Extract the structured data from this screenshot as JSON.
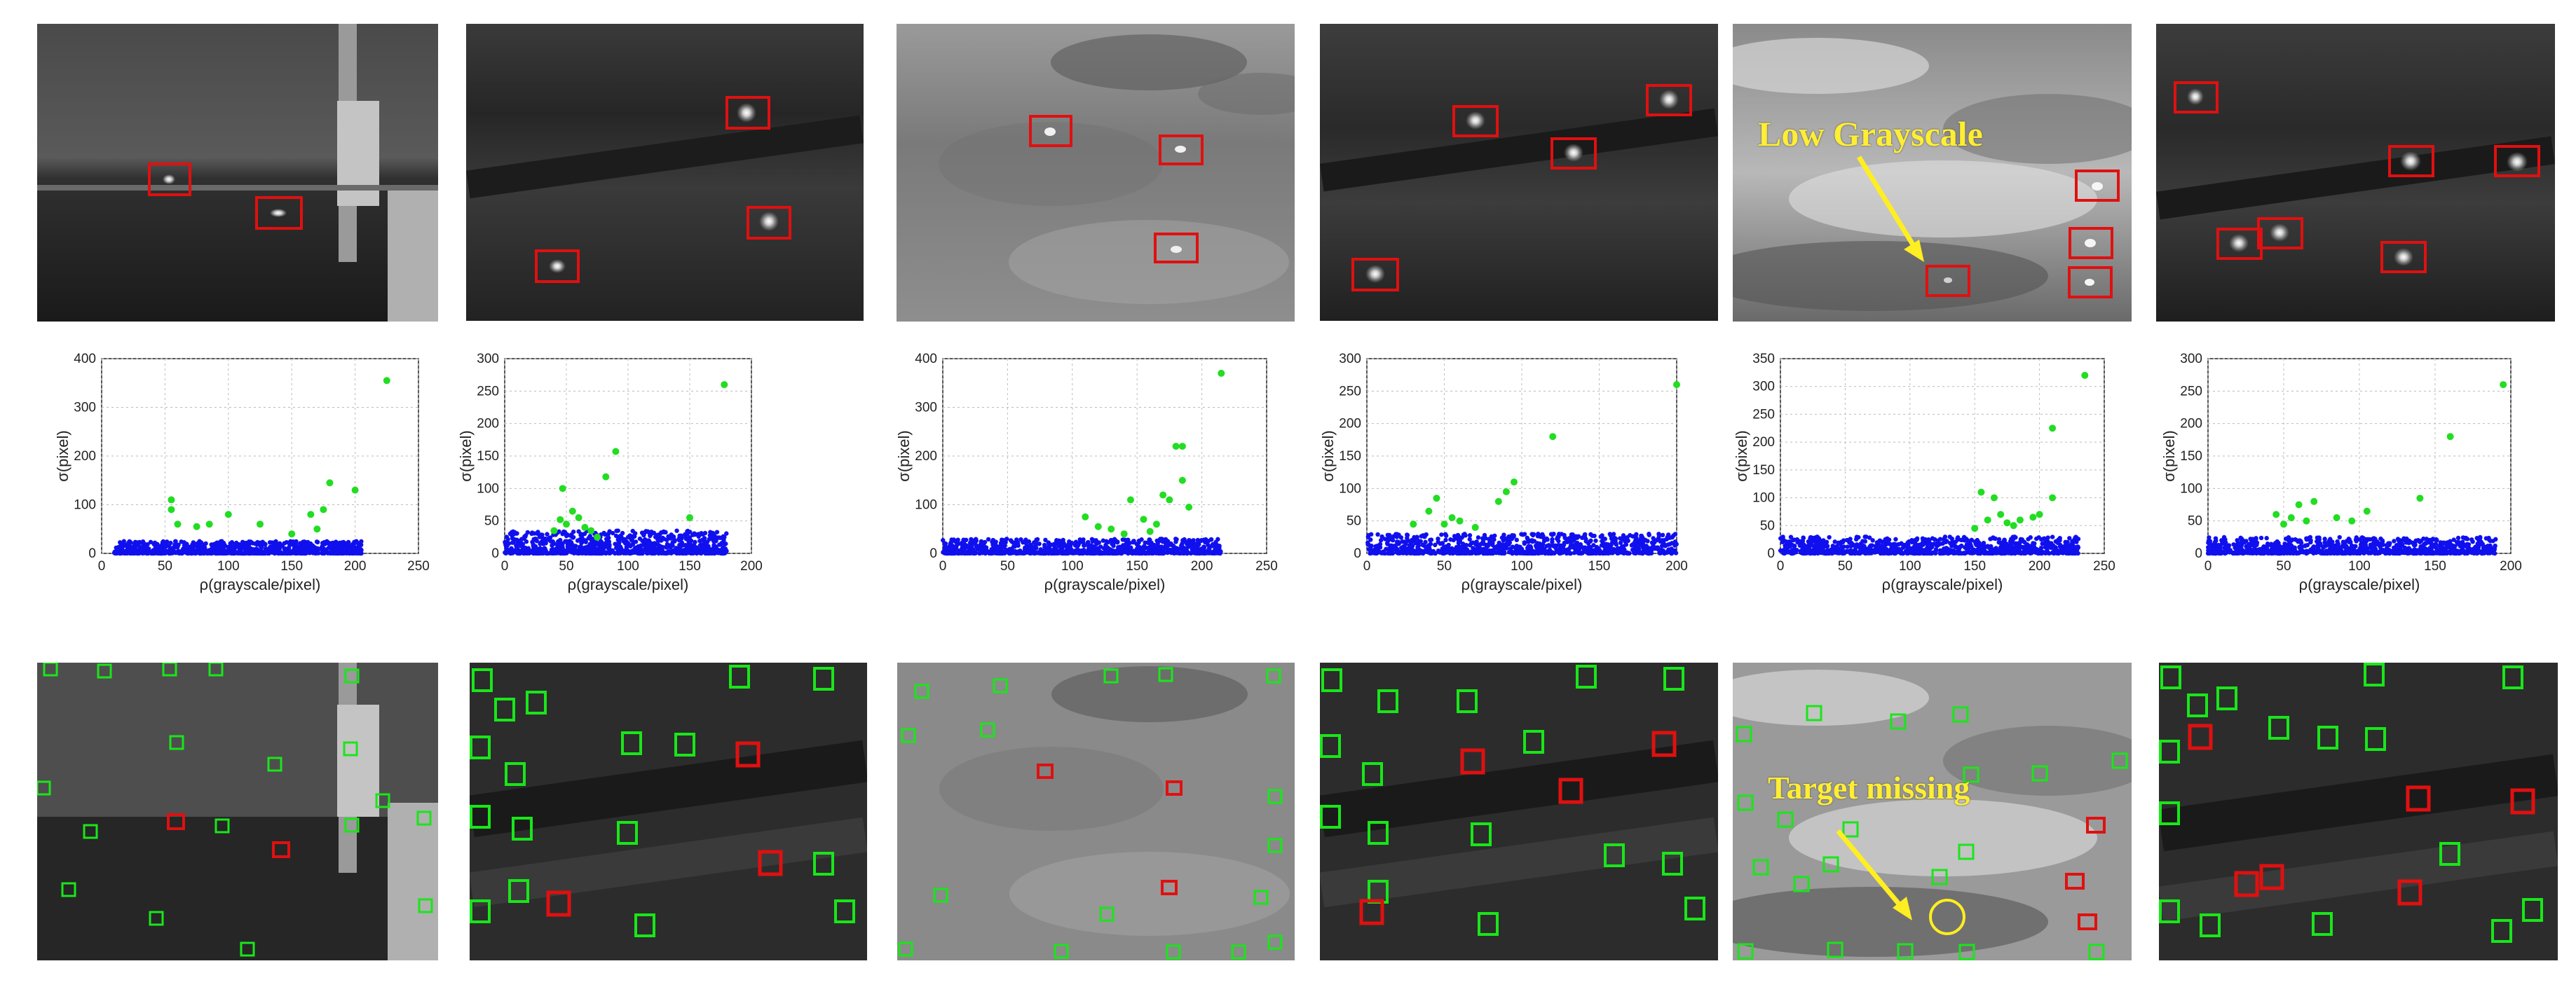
{
  "annotations": {
    "low_grayscale": "Low Grayscale",
    "target_missing": "Target missing"
  },
  "colors": {
    "detection_box": "#e01010",
    "candidate_box": "#19e619",
    "missing_circle": "#ffee22",
    "arrow": "#ffee22",
    "background_points": "#1010ee",
    "target_points": "#22dd22"
  },
  "chart_data": [
    {
      "type": "scatter",
      "xlabel": "ρ(grayscale/pixel)",
      "ylabel": "σ(pixel)",
      "xlim": [
        0,
        250
      ],
      "ylim": [
        0,
        400
      ],
      "xticks": [
        0,
        50,
        100,
        150,
        200,
        250
      ],
      "yticks": [
        0,
        100,
        200,
        300,
        400
      ],
      "grid": true,
      "background_cluster": {
        "x_range": [
          10,
          205
        ],
        "y_range": [
          0,
          25
        ]
      },
      "series": [
        {
          "values": [
            [
              55,
              110
            ],
            [
              55,
              90
            ],
            [
              60,
              60
            ],
            [
              75,
              55
            ],
            [
              85,
              60
            ],
            [
              100,
              80
            ],
            [
              125,
              60
            ],
            [
              180,
              145
            ],
            [
              175,
              90
            ],
            [
              165,
              80
            ],
            [
              200,
              130
            ],
            [
              225,
              355
            ],
            [
              170,
              50
            ],
            [
              150,
              40
            ]
          ]
        }
      ]
    },
    {
      "type": "scatter",
      "xlabel": "ρ(grayscale/pixel)",
      "ylabel": "σ(pixel)",
      "xlim": [
        0,
        200
      ],
      "ylim": [
        0,
        300
      ],
      "xticks": [
        0,
        50,
        100,
        150,
        200
      ],
      "yticks": [
        0,
        50,
        100,
        150,
        200,
        250,
        300
      ],
      "grid": true,
      "background_cluster": {
        "x_range": [
          0,
          180
        ],
        "y_range": [
          0,
          35
        ]
      },
      "series": [
        {
          "values": [
            [
              47,
              100
            ],
            [
              55,
              65
            ],
            [
              60,
              55
            ],
            [
              45,
              52
            ],
            [
              65,
              40
            ],
            [
              70,
              35
            ],
            [
              75,
              25
            ],
            [
              82,
              118
            ],
            [
              90,
              157
            ],
            [
              150,
              55
            ],
            [
              178,
              260
            ],
            [
              40,
              35
            ],
            [
              50,
              45
            ]
          ]
        }
      ]
    },
    {
      "type": "scatter",
      "xlabel": "ρ(grayscale/pixel)",
      "ylabel": "σ(pixel)",
      "xlim": [
        0,
        250
      ],
      "ylim": [
        0,
        400
      ],
      "xticks": [
        0,
        50,
        100,
        150,
        200,
        250
      ],
      "yticks": [
        0,
        100,
        200,
        300,
        400
      ],
      "grid": true,
      "background_cluster": {
        "x_range": [
          0,
          215
        ],
        "y_range": [
          0,
          30
        ]
      },
      "series": [
        {
          "values": [
            [
              110,
              75
            ],
            [
              120,
              55
            ],
            [
              130,
              50
            ],
            [
              145,
              110
            ],
            [
              155,
              70
            ],
            [
              165,
              60
            ],
            [
              170,
              120
            ],
            [
              175,
              110
            ],
            [
              180,
              220
            ],
            [
              185,
              220
            ],
            [
              185,
              150
            ],
            [
              190,
              95
            ],
            [
              215,
              370
            ],
            [
              140,
              40
            ],
            [
              160,
              45
            ]
          ]
        }
      ]
    },
    {
      "type": "scatter",
      "xlabel": "ρ(grayscale/pixel)",
      "ylabel": "σ(pixel)",
      "xlim": [
        0,
        200
      ],
      "ylim": [
        0,
        300
      ],
      "xticks": [
        0,
        50,
        100,
        150,
        200
      ],
      "yticks": [
        0,
        50,
        100,
        150,
        200,
        250,
        300
      ],
      "grid": true,
      "background_cluster": {
        "x_range": [
          0,
          200
        ],
        "y_range": [
          0,
          30
        ]
      },
      "series": [
        {
          "values": [
            [
              40,
              65
            ],
            [
              45,
              85
            ],
            [
              55,
              55
            ],
            [
              60,
              50
            ],
            [
              50,
              45
            ],
            [
              85,
              80
            ],
            [
              90,
              95
            ],
            [
              95,
              110
            ],
            [
              120,
              180
            ],
            [
              200,
              260
            ],
            [
              70,
              40
            ],
            [
              30,
              45
            ]
          ]
        }
      ]
    },
    {
      "type": "scatter",
      "xlabel": "ρ(grayscale/pixel)",
      "ylabel": "σ(pixel)",
      "xlim": [
        0,
        250
      ],
      "ylim": [
        0,
        350
      ],
      "xticks": [
        0,
        50,
        100,
        150,
        200,
        250
      ],
      "yticks": [
        0,
        50,
        100,
        150,
        200,
        250,
        300,
        350
      ],
      "grid": true,
      "background_cluster": {
        "x_range": [
          0,
          230
        ],
        "y_range": [
          0,
          30
        ]
      },
      "series": [
        {
          "values": [
            [
              155,
              110
            ],
            [
              165,
              100
            ],
            [
              170,
              70
            ],
            [
              160,
              60
            ],
            [
              175,
              55
            ],
            [
              185,
              60
            ],
            [
              195,
              65
            ],
            [
              200,
              70
            ],
            [
              210,
              100
            ],
            [
              210,
              225
            ],
            [
              235,
              320
            ],
            [
              180,
              50
            ],
            [
              150,
              45
            ]
          ]
        }
      ]
    },
    {
      "type": "scatter",
      "xlabel": "ρ(grayscale/pixel)",
      "ylabel": "σ(pixel)",
      "xlim": [
        0,
        200
      ],
      "ylim": [
        0,
        300
      ],
      "xticks": [
        0,
        50,
        100,
        150,
        200
      ],
      "yticks": [
        0,
        50,
        100,
        150,
        200,
        250,
        300
      ],
      "grid": true,
      "background_cluster": {
        "x_range": [
          0,
          190
        ],
        "y_range": [
          0,
          25
        ]
      },
      "series": [
        {
          "values": [
            [
              45,
              60
            ],
            [
              55,
              55
            ],
            [
              60,
              75
            ],
            [
              70,
              80
            ],
            [
              65,
              50
            ],
            [
              85,
              55
            ],
            [
              95,
              50
            ],
            [
              105,
              65
            ],
            [
              140,
              85
            ],
            [
              160,
              180
            ],
            [
              195,
              260
            ],
            [
              50,
              45
            ]
          ]
        }
      ]
    }
  ]
}
